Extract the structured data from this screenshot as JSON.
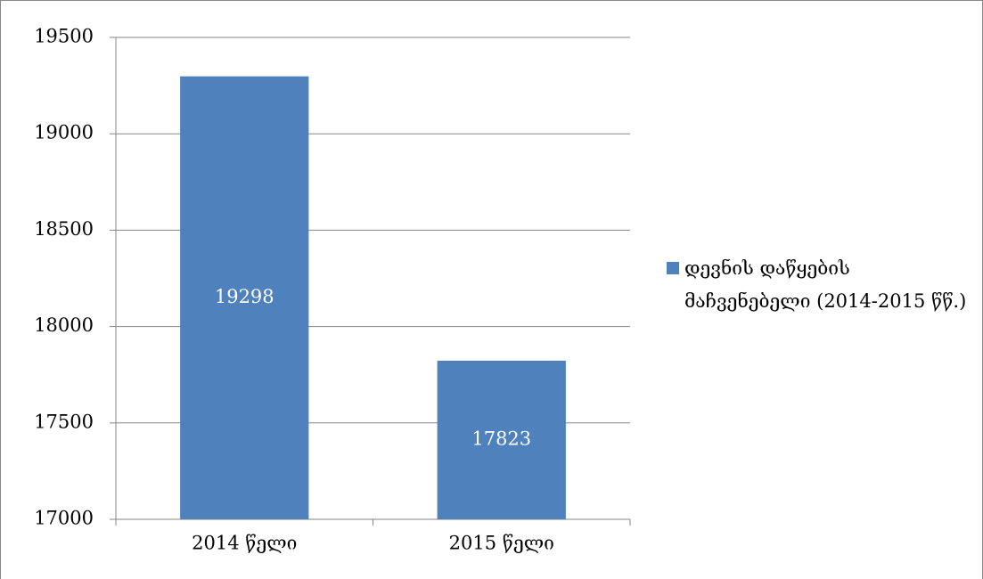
{
  "chart_data": {
    "type": "bar",
    "categories": [
      "2014 წელი",
      "2015 წელი"
    ],
    "series": [
      {
        "name": "დევნის დაწყების მაჩვენებელი (2014-2015 წწ.)",
        "color": "#4f81bd",
        "values": [
          19298,
          17823
        ]
      }
    ],
    "ylim": [
      17000,
      19500
    ],
    "yticks": [
      17000,
      17500,
      18000,
      18500,
      19000,
      19500
    ],
    "grid": true,
    "legend": "right"
  }
}
